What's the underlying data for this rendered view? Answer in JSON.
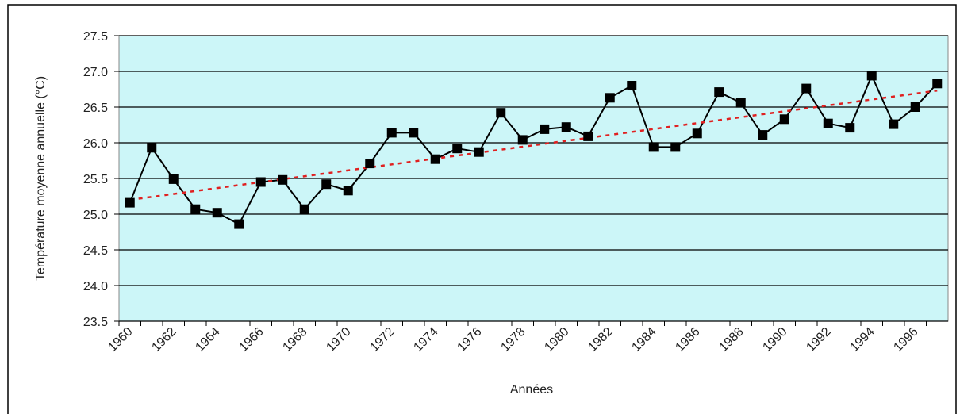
{
  "chart_data": {
    "type": "line",
    "y_label": "Température moyenne annuelle (°C)",
    "x_label": "Années",
    "categories": [
      "1960",
      null,
      "1962",
      null,
      "1964",
      null,
      "1966",
      null,
      "1968",
      null,
      "1970",
      null,
      "1972",
      null,
      "1974",
      null,
      "1976",
      null,
      "1978",
      null,
      "1980",
      null,
      "1982",
      null,
      "1984",
      null,
      "1986",
      null,
      "1988",
      null,
      "1990",
      null,
      "1992",
      null,
      "1994",
      null,
      "1996",
      null
    ],
    "series": [
      {
        "color": "#000000",
        "values": [
          25.16,
          25.93,
          25.49,
          25.07,
          25.02,
          24.86,
          25.45,
          25.48,
          25.07,
          25.42,
          25.33,
          25.71,
          26.14,
          26.14,
          25.77,
          25.92,
          25.87,
          26.42,
          26.04,
          26.19,
          26.22,
          26.09,
          26.63,
          26.8,
          25.94,
          25.94,
          26.13,
          26.71,
          26.56,
          26.11,
          26.33,
          26.76,
          26.27,
          26.21,
          26.94,
          26.26,
          26.5,
          26.83
        ]
      }
    ],
    "trendline": {
      "color": "#e02020",
      "start": 25.2,
      "end": 26.73
    },
    "ylim": [
      23.5,
      27.5
    ],
    "yticks": [
      23.5,
      {
        "value": 24,
        "label": "24.0"
      },
      24.5,
      {
        "value": 25,
        "label": "25.0"
      },
      25.5,
      {
        "value": 26,
        "label": "26.0"
      },
      26.5,
      {
        "value": 27,
        "label": "27.0"
      },
      27.5
    ],
    "grid": true,
    "background": "#ccf6f8"
  }
}
